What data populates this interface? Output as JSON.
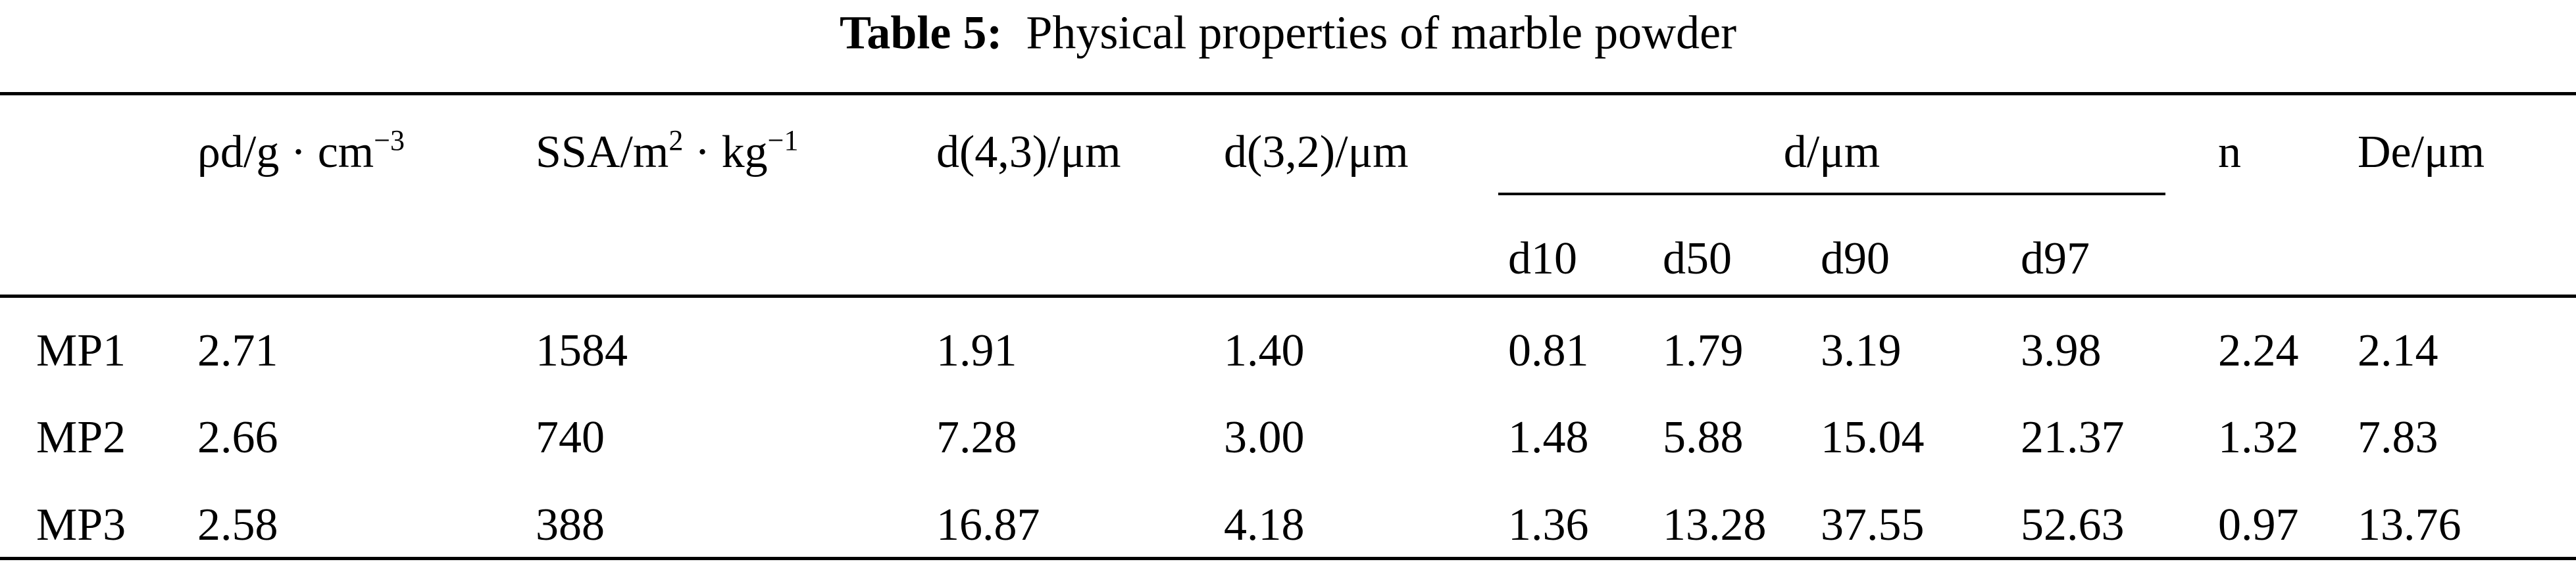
{
  "title": {
    "label": "Table 5:",
    "text": "Physical properties of marble powder"
  },
  "table": {
    "headers": [
      [
        [
          "ρd/g · cm",
          "−3"
        ]
      ],
      [
        [
          "SSA/m",
          "2"
        ],
        [
          " · kg",
          "−1"
        ]
      ],
      [
        [
          "d(4,3)/μm"
        ]
      ],
      [
        [
          "d(3,2)/μm"
        ]
      ],
      [
        [
          "n"
        ]
      ],
      [
        [
          "De/μm"
        ]
      ]
    ],
    "group": {
      "label": "d/μm",
      "subcolumns": [
        "d10",
        "d50",
        "d90",
        "d97"
      ]
    },
    "rows": [
      [
        "MP1",
        "2.71",
        "1584",
        "1.91",
        "1.40",
        "0.81",
        "1.79",
        "3.19",
        "3.98",
        "2.24",
        "2.14"
      ],
      [
        "MP2",
        "2.66",
        "740",
        "7.28",
        "3.00",
        "1.48",
        "5.88",
        "15.04",
        "21.37",
        "1.32",
        "7.83"
      ],
      [
        "MP3",
        "2.58",
        "388",
        "16.87",
        "4.18",
        "1.36",
        "13.28",
        "37.55",
        "52.63",
        "0.97",
        "13.76"
      ]
    ]
  }
}
